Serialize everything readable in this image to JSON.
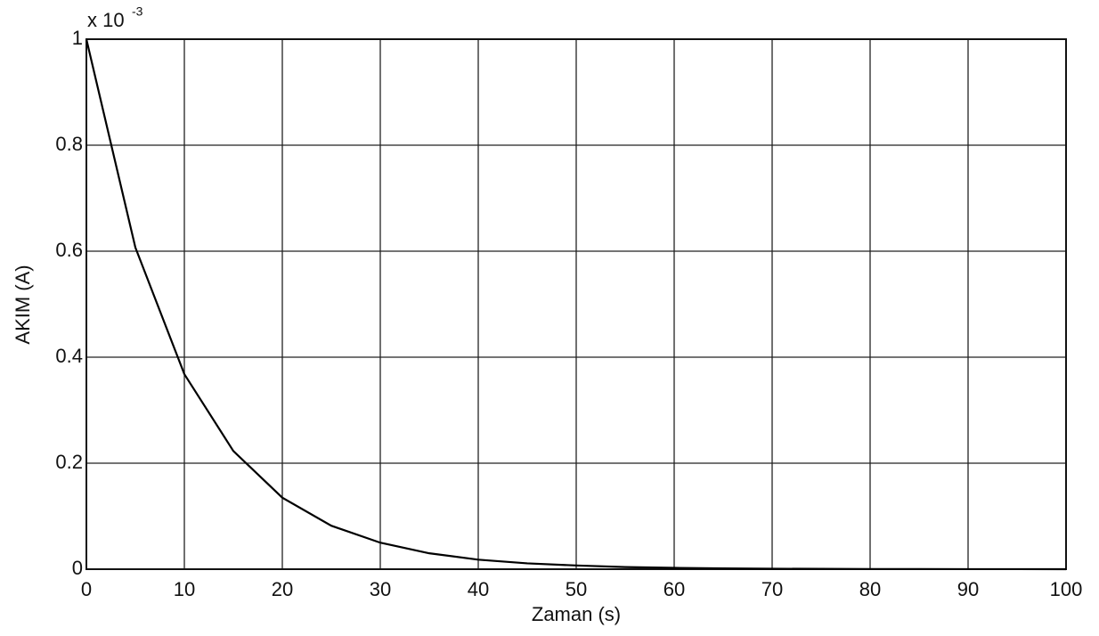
{
  "chart_data": {
    "type": "line",
    "y_label": "AKIM (A)",
    "x_label": "Zaman (s)",
    "y_multiplier": {
      "base": "x 10",
      "exponent": "-3"
    },
    "x": [
      0,
      5,
      10,
      15,
      20,
      25,
      30,
      35,
      40,
      45,
      50,
      55,
      60,
      65,
      70,
      75,
      80,
      85,
      90,
      95,
      100
    ],
    "series": [
      {
        "color": "#000000",
        "values": [
          1,
          0.607,
          0.368,
          0.223,
          0.135,
          0.082,
          0.05,
          0.03,
          0.018,
          0.011,
          0.007,
          0.004,
          0.0025,
          0.0015,
          0.0009,
          0.0006,
          0.0003,
          0.0002,
          0.0001,
          0.0001,
          0
        ]
      }
    ],
    "xlim": [
      0,
      100
    ],
    "xticks": [
      0,
      10,
      20,
      30,
      40,
      50,
      60,
      70,
      80,
      90,
      100
    ],
    "ylim": [
      0,
      1
    ],
    "yticks": [
      0,
      0.2,
      0.4,
      0.6,
      0.8,
      1
    ],
    "grid": true
  }
}
